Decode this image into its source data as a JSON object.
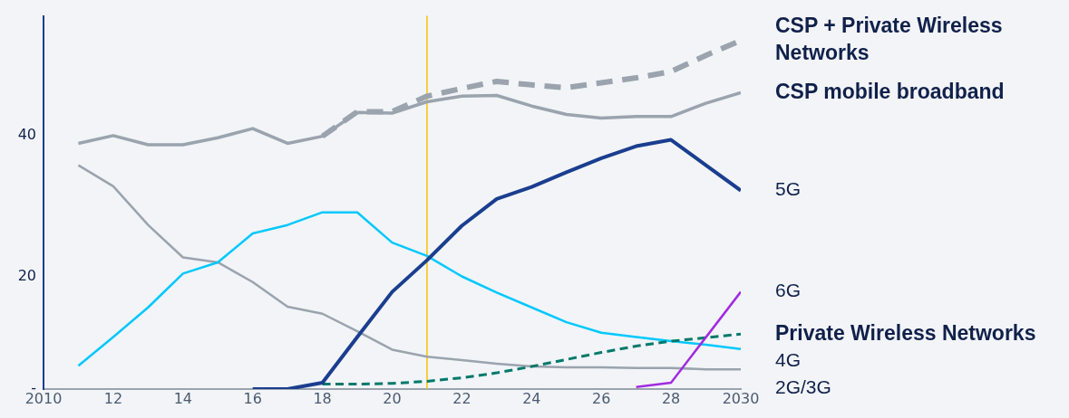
{
  "chart_data": {
    "type": "line",
    "xlim": [
      2010,
      2030
    ],
    "xticks": [
      2010,
      {
        "value": 2012,
        "label": "12"
      },
      {
        "value": 2014,
        "label": "14"
      },
      {
        "value": 2016,
        "label": "16"
      },
      {
        "value": 2018,
        "label": "18"
      },
      {
        "value": 2020,
        "label": "20"
      },
      {
        "value": 2022,
        "label": "22"
      },
      {
        "value": 2024,
        "label": "24"
      },
      {
        "value": 2026,
        "label": "26"
      },
      {
        "value": 2028,
        "label": "28"
      },
      2030
    ],
    "ylim": [
      4,
      57
    ],
    "yticks": [
      {
        "value": 4,
        "label": "-"
      },
      20,
      40
    ],
    "grid": false,
    "legend": false,
    "ref_lines": [
      {
        "axis": "x",
        "value": 2021,
        "color": "#f5c400"
      }
    ],
    "series": [
      {
        "name": "CSP + Private Wireless Networks",
        "color": "#9aa3ae",
        "line_style": "dashed",
        "x": [
          2018,
          2019,
          2020,
          2021,
          2022,
          2023,
          2024,
          2025,
          2026,
          2027,
          2028,
          2029,
          2030
        ],
        "values": [
          39.9,
          43.4,
          43.4,
          45.6,
          46.7,
          47.7,
          47.2,
          46.8,
          47.5,
          48.2,
          49.1,
          51.4,
          53.5
        ]
      },
      {
        "name": "CSP mobile broadband",
        "color": "#9aa3ae",
        "line_style": "solid",
        "x": [
          2011,
          2012,
          2013,
          2014,
          2015,
          2016,
          2017,
          2018,
          2019,
          2020,
          2021,
          2022,
          2023,
          2024,
          2025,
          2026,
          2027,
          2028,
          2029,
          2030
        ],
        "values": [
          38.9,
          40.0,
          38.7,
          38.7,
          39.7,
          41.0,
          38.9,
          39.9,
          43.3,
          43.2,
          44.8,
          45.6,
          45.7,
          44.2,
          43.0,
          42.5,
          42.7,
          42.7,
          44.6,
          46.1
        ]
      },
      {
        "name": "5G",
        "color": "#1a3e8f",
        "line_style": "solid",
        "x": [
          2016,
          2017,
          2018,
          2019,
          2020,
          2021,
          2022,
          2023,
          2024,
          2025,
          2026,
          2027,
          2028,
          2029,
          2030
        ],
        "values": [
          4,
          4,
          4.9,
          11.4,
          17.8,
          22.3,
          27.2,
          31.0,
          32.7,
          34.8,
          36.8,
          38.5,
          39.4,
          35.8,
          32.2
        ]
      },
      {
        "name": "6G",
        "color": "#a12be0",
        "line_style": "solid",
        "x": [
          2027,
          2028,
          2030
        ],
        "values": [
          4.3,
          4.9,
          17.8
        ]
      },
      {
        "name": "Private Wireless Networks",
        "color": "#00796b",
        "line_style": "dashed",
        "x": [
          2018,
          2019,
          2020,
          2021,
          2022,
          2023,
          2024,
          2025,
          2026,
          2027,
          2028,
          2029,
          2030
        ],
        "values": [
          4.7,
          4.7,
          4.8,
          5.1,
          5.6,
          6.3,
          7.2,
          8.2,
          9.2,
          10.1,
          10.8,
          11.3,
          11.8
        ]
      },
      {
        "name": "4G",
        "color": "#00c8ff",
        "line_style": "solid",
        "x": [
          2011,
          2012,
          2013,
          2014,
          2015,
          2016,
          2017,
          2018,
          2019,
          2020,
          2021,
          2022,
          2023,
          2024,
          2025,
          2026,
          2027,
          2028,
          2029,
          2030
        ],
        "values": [
          7.3,
          11.4,
          15.6,
          20.4,
          22.0,
          26.1,
          27.3,
          29.1,
          29.1,
          24.8,
          22.9,
          20.0,
          17.7,
          15.6,
          13.5,
          12.0,
          11.4,
          10.8,
          10.3,
          9.7
        ]
      },
      {
        "name": "2G/3G",
        "color": "#9aa3ae",
        "line_style": "solid",
        "x": [
          2011,
          2012,
          2013,
          2014,
          2015,
          2016,
          2017,
          2018,
          2019,
          2020,
          2021,
          2022,
          2023,
          2024,
          2025,
          2026,
          2027,
          2028,
          2029,
          2030
        ],
        "values": [
          35.8,
          32.8,
          27.3,
          22.7,
          22.0,
          19.2,
          15.7,
          14.7,
          12.2,
          9.6,
          8.6,
          8.1,
          7.6,
          7.2,
          7.1,
          7.1,
          7.0,
          7.0,
          6.8,
          6.8
        ]
      }
    ]
  }
}
